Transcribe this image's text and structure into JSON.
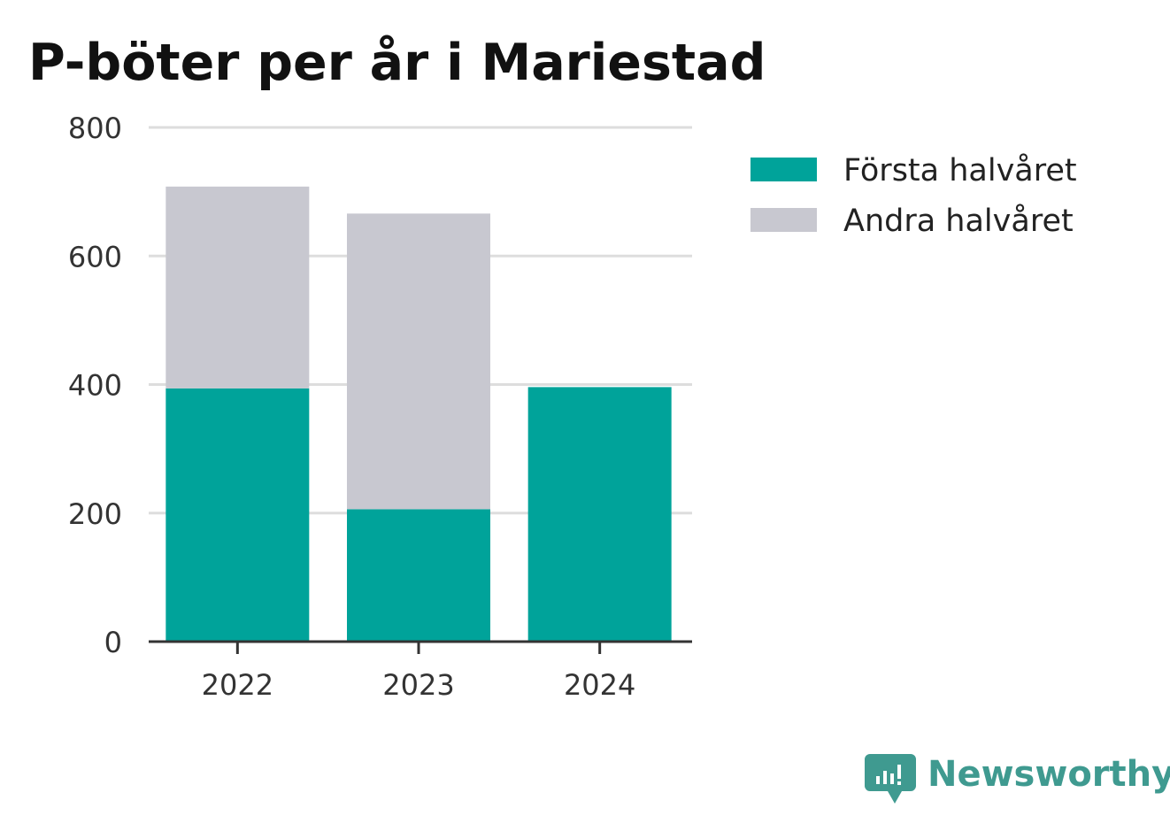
{
  "chart_data": {
    "type": "bar",
    "stacked": true,
    "title": "P-böter per år i Mariestad",
    "categories": [
      "2022",
      "2023",
      "2024"
    ],
    "series": [
      {
        "name": "Första halvåret",
        "color": "#00a39a",
        "values": [
          394,
          206,
          396
        ]
      },
      {
        "name": "Andra halvåret",
        "color": "#c8c8d0",
        "values": [
          314,
          460,
          0
        ]
      }
    ],
    "yticks": [
      "0",
      "200",
      "400",
      "600",
      "800"
    ],
    "ylim": [
      0,
      800
    ],
    "grid": true,
    "legend_position": "right"
  },
  "brand": {
    "name": "Newsworthy",
    "icon": "newsworthy-logo-icon",
    "color": "#3f9a90"
  }
}
